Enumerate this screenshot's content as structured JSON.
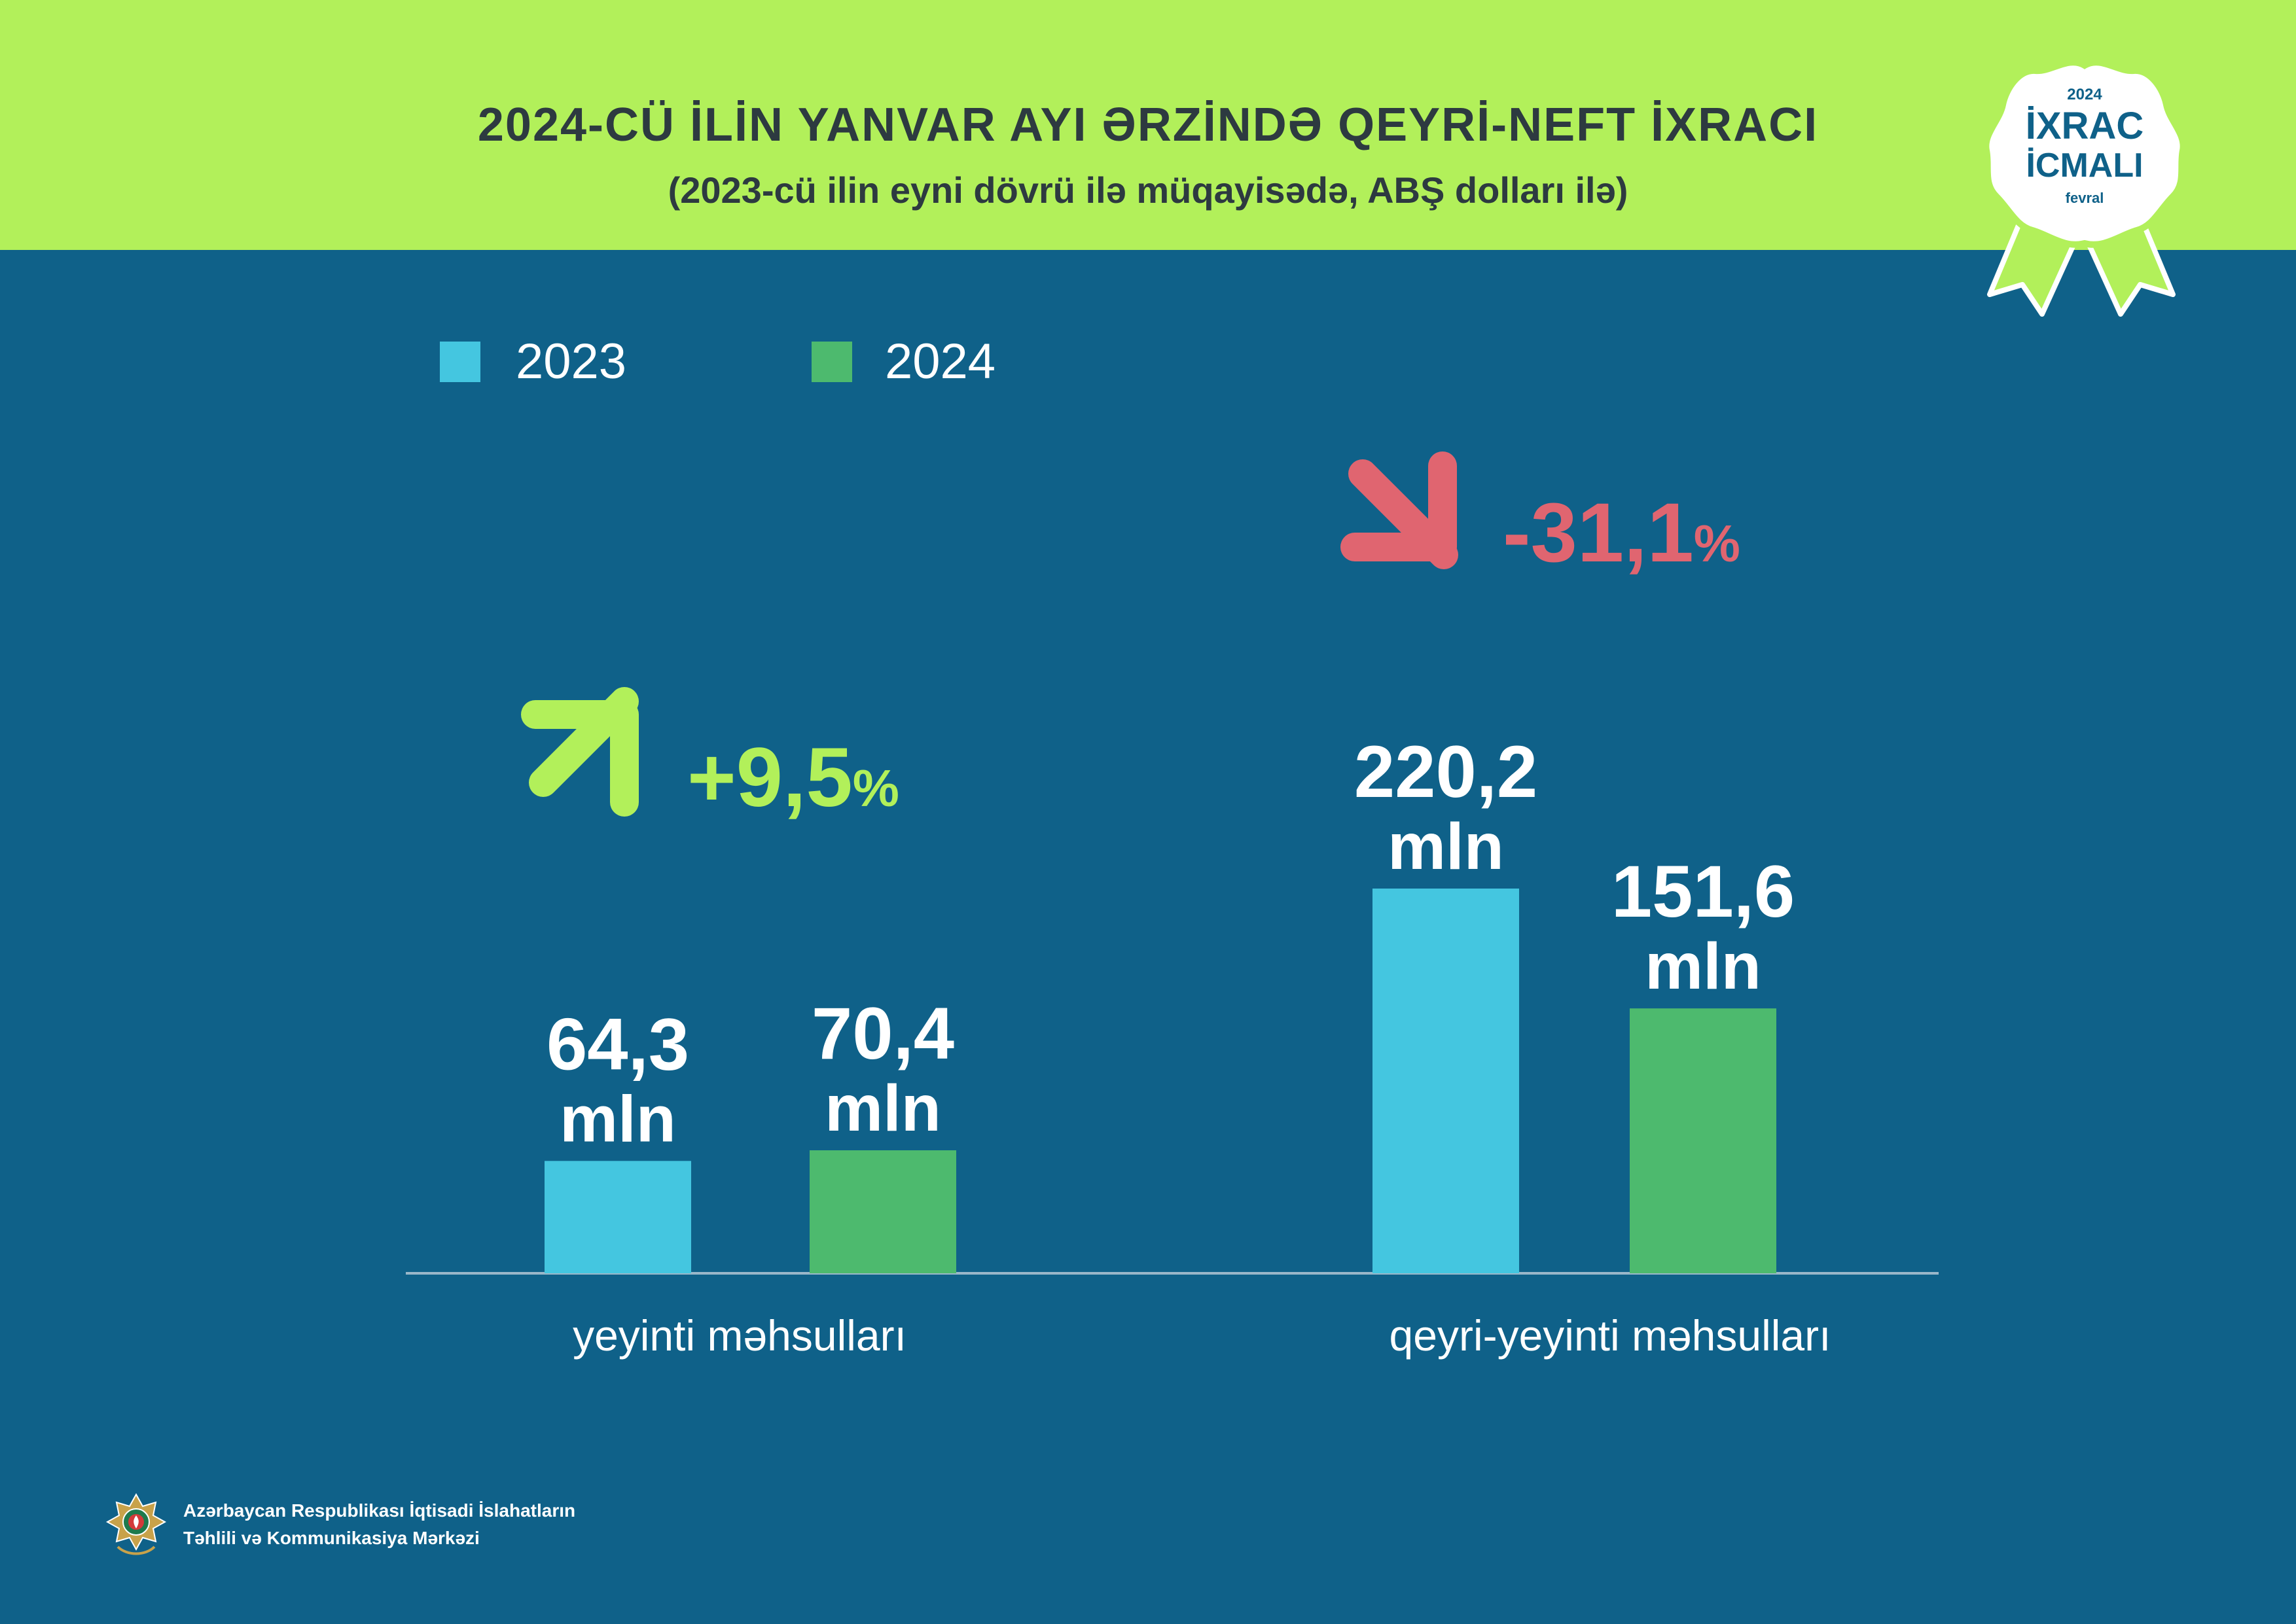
{
  "header": {
    "title": "2024-CÜ İLİN YANVAR AYI ƏRZİNDƏ QEYRİ-NEFT İXRACI",
    "subtitle": "(2023-cü ilin eyni dövrü ilə müqayisədə, ABŞ dolları ilə)"
  },
  "badge": {
    "year": "2024",
    "line1": "İXRAC",
    "line2": "İCMALI",
    "month": "fevral"
  },
  "footer": {
    "line1": "Azərbaycan Respublikası İqtisadi İslahatların",
    "line2": "Təhlili və Kommunikasiya Mərkəzi",
    "emblem_icon": "azerbaijan-emblem-icon"
  },
  "colors": {
    "background": "#0f6189",
    "header": "#b2f05a",
    "series_2023": "#44c6e0",
    "series_2024": "#4dba6e",
    "increase": "#b2f05a",
    "decrease": "#e06570"
  },
  "chart_data": {
    "type": "bar",
    "categories": [
      "yeyinti məhsulları",
      "qeyri-yeyinti məhsulları"
    ],
    "series": [
      {
        "name": "2023",
        "values": [
          64.3,
          220.2
        ],
        "labels": [
          "64,3",
          "220,2"
        ]
      },
      {
        "name": "2024",
        "values": [
          70.4,
          151.6
        ],
        "labels": [
          "70,4",
          "151,6"
        ]
      }
    ],
    "unit_label": "mln",
    "changes": [
      {
        "category": "yeyinti məhsulları",
        "value": 9.5,
        "text": "+9,5",
        "percent_sign": "%",
        "direction": "up",
        "icon": "arrow-up-right-icon"
      },
      {
        "category": "qeyri-yeyinti məhsulları",
        "value": -31.1,
        "text": "-31,1",
        "percent_sign": "%",
        "direction": "down",
        "icon": "arrow-down-right-icon"
      }
    ],
    "legend_position": "top-left",
    "ylim": [
      0,
      220.2
    ],
    "grid": false,
    "title": "",
    "xlabel": "",
    "ylabel": ""
  }
}
